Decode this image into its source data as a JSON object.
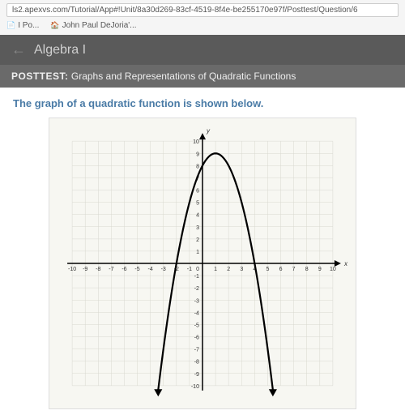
{
  "browser": {
    "url": "ls2.apexvs.com/Tutorial/App#!Unit/8a30d269-83cf-4519-8f4e-be255170e97f/Posttest/Question/6",
    "bookmarks": [
      {
        "label": "I Po..."
      },
      {
        "label": "John Paul DeJoria'..."
      }
    ]
  },
  "header": {
    "course": "Algebra I",
    "posttest_label": "POSTTEST:",
    "posttest_title": "Graphs and Representations of Quadratic Functions"
  },
  "question": {
    "text": "The graph of a quadratic function is shown below."
  },
  "chart": {
    "type": "parabola",
    "xlim": [
      -10,
      10
    ],
    "ylim": [
      -10,
      10
    ],
    "xtick_step": 1,
    "ytick_step": 1,
    "background_color": "#f7f7f2",
    "grid_color": "#d8d8d0",
    "axis_color": "#000000",
    "curve_color": "#000000",
    "curve_width": 2.2,
    "x_axis_label": "x",
    "y_axis_label": "y",
    "parabola": {
      "a": -1,
      "h": 1,
      "k": 9,
      "comment": "y = -(x-1)^2 + 9, vertex (1,9), roots at x=-2 and x=4"
    }
  }
}
